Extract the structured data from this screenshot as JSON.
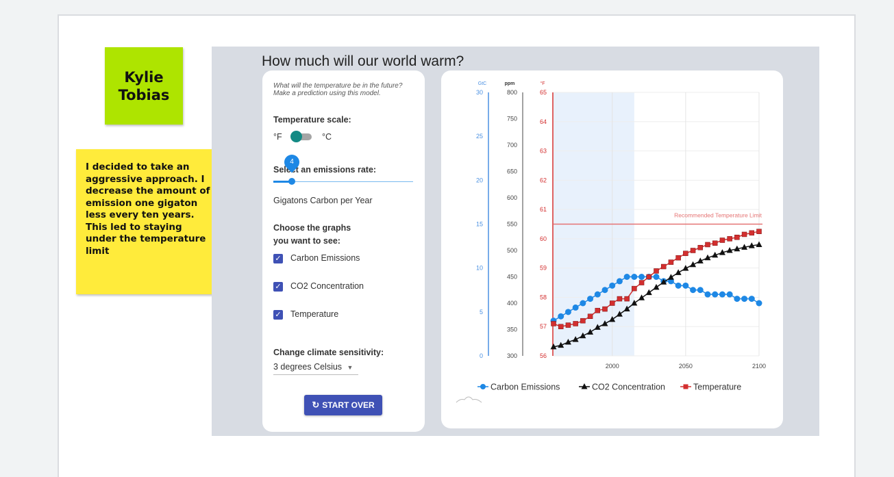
{
  "sticky_name": {
    "text": "Kylie Tobias"
  },
  "sticky_note": {
    "text": "I decided to take an aggressive approach. I decrease the amount of emission one gigaton less every ten years. This led to staying under the temperature limit"
  },
  "sim": {
    "title": "How much will our world warm?",
    "question": "What will the temperature be in the future? Make a prediction using this model.",
    "temp_scale_label": "Temperature scale:",
    "unit_f": "°F",
    "unit_c": "°C",
    "emissions_label": "Select an emissions rate:",
    "slider_value": "4",
    "emissions_unit": "Gigatons Carbon per Year",
    "graphs_label_1": "Choose the graphs",
    "graphs_label_2": "you want to see:",
    "checkboxes": [
      {
        "label": "Carbon Emissions",
        "checked": true
      },
      {
        "label": "CO2 Concentration",
        "checked": true
      },
      {
        "label": "Temperature",
        "checked": true
      }
    ],
    "sensitivity_label": "Change climate sensitivity:",
    "sensitivity_value": "3 degrees Celsius",
    "start_over": "START OVER"
  },
  "chart_data": {
    "type": "line",
    "axes": {
      "gtc": {
        "unit": "GtC",
        "ticks": [
          0,
          5,
          10,
          15,
          20,
          25,
          30
        ],
        "color": "#4a90e2"
      },
      "ppm": {
        "unit": "ppm",
        "ticks": [
          300,
          350,
          400,
          450,
          500,
          550,
          600,
          650,
          700,
          750,
          800
        ],
        "color": "#333333"
      },
      "temp": {
        "unit": "°F",
        "ticks": [
          56,
          57,
          58,
          59,
          60,
          61,
          62,
          63,
          64,
          65
        ],
        "color": "#d32f2f"
      }
    },
    "x_ticks": [
      2000,
      2050,
      2100
    ],
    "xlim": [
      1960,
      2100
    ],
    "historical_range": [
      1960,
      2015
    ],
    "limit_line": {
      "value": 60.5,
      "label": "Recommended Temperature Limit",
      "color": "#e57373"
    },
    "series": [
      {
        "name": "Carbon Emissions",
        "axis": "gtc",
        "color": "#1e88e5",
        "marker": "circle",
        "x": [
          1960,
          1965,
          1970,
          1975,
          1980,
          1985,
          1990,
          1995,
          2000,
          2005,
          2010,
          2015,
          2020,
          2025,
          2030,
          2035,
          2040,
          2045,
          2050,
          2055,
          2060,
          2065,
          2070,
          2075,
          2080,
          2085,
          2090,
          2095,
          2100
        ],
        "values": [
          4.0,
          4.5,
          5.0,
          5.5,
          6.0,
          6.5,
          7.0,
          7.5,
          8.0,
          8.5,
          9.0,
          9.0,
          9.0,
          9.0,
          9.0,
          8.5,
          8.5,
          8.0,
          8.0,
          7.5,
          7.5,
          7.0,
          7.0,
          7.0,
          7.0,
          6.5,
          6.5,
          6.5,
          6.0
        ]
      },
      {
        "name": "CO2 Concentration",
        "axis": "ppm",
        "color": "#111111",
        "marker": "triangle",
        "x": [
          1960,
          1965,
          1970,
          1975,
          1980,
          1985,
          1990,
          1995,
          2000,
          2005,
          2010,
          2015,
          2020,
          2025,
          2030,
          2035,
          2040,
          2045,
          2050,
          2055,
          2060,
          2065,
          2070,
          2075,
          2080,
          2085,
          2090,
          2095,
          2100
        ],
        "values": [
          317,
          320,
          326,
          331,
          338,
          345,
          354,
          361,
          369,
          379,
          389,
          400,
          410,
          420,
          430,
          440,
          449,
          458,
          466,
          473,
          480,
          486,
          491,
          496,
          500,
          503,
          506,
          509,
          511
        ]
      },
      {
        "name": "Temperature",
        "axis": "temp",
        "color": "#d32f2f",
        "marker": "square",
        "x": [
          1960,
          1965,
          1970,
          1975,
          1980,
          1985,
          1990,
          1995,
          2000,
          2005,
          2010,
          2015,
          2020,
          2025,
          2030,
          2035,
          2040,
          2045,
          2050,
          2055,
          2060,
          2065,
          2070,
          2075,
          2080,
          2085,
          2090,
          2095,
          2100
        ],
        "values": [
          57.1,
          57.0,
          57.05,
          57.1,
          57.2,
          57.35,
          57.55,
          57.6,
          57.8,
          57.95,
          57.95,
          58.3,
          58.5,
          58.7,
          58.9,
          59.05,
          59.2,
          59.35,
          59.5,
          59.6,
          59.7,
          59.8,
          59.85,
          59.95,
          60.0,
          60.05,
          60.15,
          60.2,
          60.25
        ]
      }
    ]
  }
}
